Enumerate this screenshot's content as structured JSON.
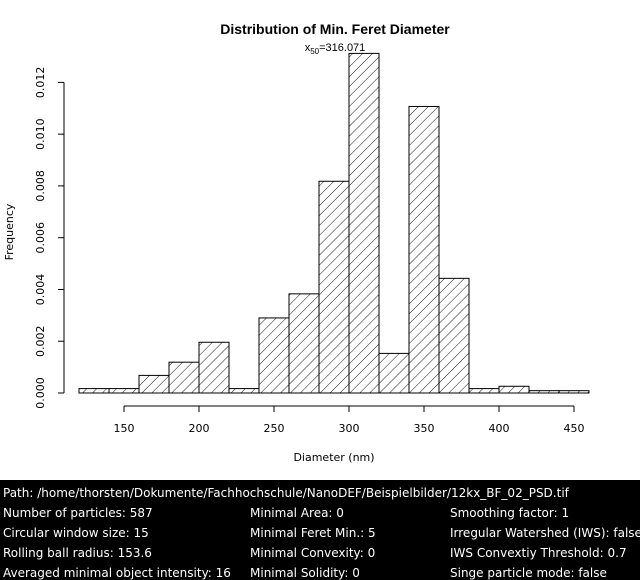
{
  "chart_data": {
    "type": "bar",
    "title": "Distribution of Min. Feret Diameter",
    "subtitle_prefix": "x",
    "subtitle_sub": "50",
    "subtitle_value": "=316.071",
    "xlabel": "Diameter (nm)",
    "ylabel": "Frequency",
    "xlim": [
      120,
      460
    ],
    "ylim": [
      0,
      0.013
    ],
    "x_ticks": [
      150,
      200,
      250,
      300,
      350,
      400,
      450
    ],
    "y_ticks": [
      0.0,
      0.002,
      0.004,
      0.006,
      0.008,
      0.01,
      0.012
    ],
    "y_tick_labels": [
      "0.000",
      "0.002",
      "0.004",
      "0.006",
      "0.008",
      "0.010",
      "0.012"
    ],
    "bin_edges": [
      120,
      140,
      160,
      180,
      200,
      220,
      240,
      260,
      280,
      300,
      320,
      340,
      360,
      380,
      400,
      420,
      440,
      460
    ],
    "values": [
      0.00017,
      0.00017,
      0.00068,
      0.00119,
      0.00196,
      0.00017,
      0.0029,
      0.00383,
      0.00818,
      0.01312,
      0.00153,
      0.01107,
      0.00443,
      0.00017,
      0.00026,
      9e-05,
      9e-05
    ],
    "fill": "hatched",
    "grid": false,
    "legend": "none"
  },
  "info": {
    "path": "Path: /home/thorsten/Dokumente/Fachhochschule/NanoDEF/Beispielbilder/12kx_BF_02_PSD.tif",
    "col1": [
      "Number of particles: 587",
      "Circular window size: 15",
      "Rolling ball radius: 153.6",
      "Averaged minimal object intensity: 16"
    ],
    "col2": [
      "Minimal Area: 0",
      "Minimal Feret Min.: 5",
      "Minimal Convexity: 0",
      "Minimal Solidity: 0"
    ],
    "col3": [
      "Smoothing factor: 1",
      "Irregular Watershed (IWS): false",
      "IWS Convextiy Threshold: 0.7",
      "Singe particle mode: false"
    ]
  }
}
